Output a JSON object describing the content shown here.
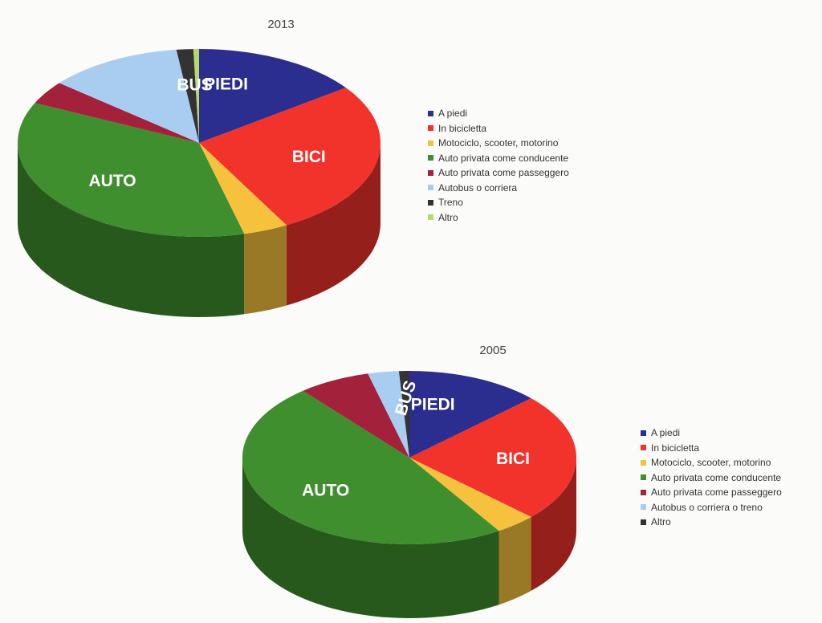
{
  "chart_data": [
    {
      "type": "pie",
      "title": "2013",
      "slices": [
        {
          "name": "A piedi",
          "value": 15,
          "label": "PIEDI",
          "color": "#2b2d8f"
        },
        {
          "name": "In bicicletta",
          "value": 27,
          "label": "BICI",
          "color": "#f1332b"
        },
        {
          "name": "Motociclo, scooter, motorino",
          "value": 4,
          "label": "",
          "color": "#f6c23e"
        },
        {
          "name": "Auto privata come conducente",
          "value": 36,
          "label": "AUTO",
          "color": "#3f8f2e"
        },
        {
          "name": "Auto privata come passeggero",
          "value": 4,
          "label": "",
          "color": "#a3213a"
        },
        {
          "name": "Autobus o corriera",
          "value": 12,
          "label": "BUS",
          "color": "#a9cdf0"
        },
        {
          "name": "Treno",
          "value": 1.5,
          "label": "",
          "color": "#333333"
        },
        {
          "name": "Altro",
          "value": 0.5,
          "label": "",
          "color": "#b5d96a"
        }
      ],
      "legend_position": "right"
    },
    {
      "type": "pie",
      "title": "2005",
      "slices": [
        {
          "name": "A piedi",
          "value": 13,
          "label": "PIEDI",
          "color": "#2b2d8f"
        },
        {
          "name": "In bicicletta",
          "value": 24,
          "label": "BICI",
          "color": "#f1332b"
        },
        {
          "name": "Motociclo, scooter, motorino",
          "value": 4,
          "label": "",
          "color": "#f6c23e"
        },
        {
          "name": "Auto privata come conducente",
          "value": 48,
          "label": "AUTO",
          "color": "#3f8f2e"
        },
        {
          "name": "Auto privata come passeggero",
          "value": 7,
          "label": "",
          "color": "#a3213a"
        },
        {
          "name": "Autobus o corriera o treno",
          "value": 3,
          "label": "BUS",
          "color": "#a9cdf0"
        },
        {
          "name": "Altro",
          "value": 1,
          "label": "",
          "color": "#333333"
        }
      ],
      "legend_position": "right"
    }
  ]
}
